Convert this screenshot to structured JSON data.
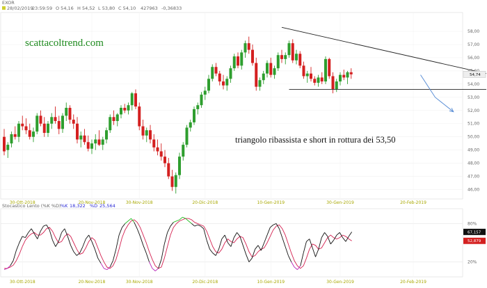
{
  "header": {
    "symbol": "EXOR",
    "date": "28/02/2019",
    "time": "23:59:59",
    "open": "O 54,16",
    "high": "H 54,52",
    "low": "L 53,80",
    "close": "C 54,10",
    "volume": "427963",
    "change": "-0,36833"
  },
  "watermark": "scattacoltrend.com",
  "annotation": "triangolo ribassista e short in rottura dei 53,50",
  "colors": {
    "up": "#2e9e2e",
    "down": "#d42020",
    "trendline": "#222222",
    "arrow": "#5b8fd6",
    "stoch_k": "#111111",
    "stoch_d": "#d42050",
    "stoch_k_high": "#22bb22",
    "stoch_k_low": "#b620b6"
  },
  "price_axis": {
    "ticks": [
      "58,00",
      "57,00",
      "56,00",
      "55,00",
      "54,00",
      "53,00",
      "52,00",
      "51,00",
      "50,00",
      "49,00",
      "48,00",
      "47,00",
      "46,00"
    ],
    "last_price": "54,74"
  },
  "date_labels": [
    "30-Ott-2018",
    "20-Nov-2018",
    "30-Nov-2018",
    "20-Dic-2018",
    "10-Gen-2019",
    "30-Gen-2019",
    "20-Feb-2019"
  ],
  "stoch_header": {
    "name": "Stocastico Lento (%K %D)",
    "k_label": "%K",
    "k_value": "18,322",
    "d_label": "%D",
    "d_value": "25,564"
  },
  "stoch_axis": {
    "ticks": [
      "80%",
      "20%"
    ],
    "k_last": "67,157",
    "d_last": "52,879"
  },
  "chart_data": [
    {
      "type": "candlestick",
      "title": "EXOR",
      "ylim": [
        45.5,
        58.9
      ],
      "candles": [
        {
          "o": 50.0,
          "h": 50.6,
          "l": 48.6,
          "c": 48.9
        },
        {
          "o": 49.0,
          "h": 49.6,
          "l": 48.4,
          "c": 49.4
        },
        {
          "o": 49.5,
          "h": 50.4,
          "l": 49.2,
          "c": 50.2
        },
        {
          "o": 50.2,
          "h": 50.8,
          "l": 49.8,
          "c": 50.0
        },
        {
          "o": 50.0,
          "h": 51.2,
          "l": 49.6,
          "c": 51.0
        },
        {
          "o": 51.0,
          "h": 51.6,
          "l": 50.5,
          "c": 50.8
        },
        {
          "o": 50.8,
          "h": 51.4,
          "l": 50.2,
          "c": 50.5
        },
        {
          "o": 50.5,
          "h": 51.0,
          "l": 49.8,
          "c": 50.0
        },
        {
          "o": 50.0,
          "h": 50.7,
          "l": 49.6,
          "c": 50.4
        },
        {
          "o": 50.4,
          "h": 51.8,
          "l": 50.2,
          "c": 51.6
        },
        {
          "o": 51.6,
          "h": 52.0,
          "l": 50.8,
          "c": 51.0
        },
        {
          "o": 51.0,
          "h": 51.5,
          "l": 50.0,
          "c": 50.3
        },
        {
          "o": 50.3,
          "h": 51.2,
          "l": 50.0,
          "c": 51.0
        },
        {
          "o": 51.0,
          "h": 51.8,
          "l": 50.6,
          "c": 51.5
        },
        {
          "o": 51.5,
          "h": 52.3,
          "l": 51.0,
          "c": 51.2
        },
        {
          "o": 51.2,
          "h": 51.6,
          "l": 50.2,
          "c": 50.6
        },
        {
          "o": 50.6,
          "h": 51.8,
          "l": 50.3,
          "c": 51.6
        },
        {
          "o": 51.6,
          "h": 52.6,
          "l": 51.2,
          "c": 52.2
        },
        {
          "o": 52.2,
          "h": 52.4,
          "l": 51.0,
          "c": 51.3
        },
        {
          "o": 51.3,
          "h": 51.7,
          "l": 50.6,
          "c": 51.0
        },
        {
          "o": 51.0,
          "h": 51.5,
          "l": 49.5,
          "c": 49.8
        },
        {
          "o": 49.8,
          "h": 50.4,
          "l": 49.2,
          "c": 50.1
        },
        {
          "o": 50.1,
          "h": 50.6,
          "l": 49.4,
          "c": 49.6
        },
        {
          "o": 49.6,
          "h": 50.1,
          "l": 48.9,
          "c": 49.1
        },
        {
          "o": 49.1,
          "h": 49.8,
          "l": 48.7,
          "c": 49.5
        },
        {
          "o": 49.5,
          "h": 50.2,
          "l": 49.0,
          "c": 49.8
        },
        {
          "o": 49.8,
          "h": 50.5,
          "l": 49.3,
          "c": 49.4
        },
        {
          "o": 49.4,
          "h": 50.0,
          "l": 49.0,
          "c": 49.8
        },
        {
          "o": 49.8,
          "h": 50.7,
          "l": 49.5,
          "c": 50.5
        },
        {
          "o": 50.5,
          "h": 51.7,
          "l": 50.3,
          "c": 51.5
        },
        {
          "o": 51.5,
          "h": 52.0,
          "l": 50.9,
          "c": 51.2
        },
        {
          "o": 51.2,
          "h": 51.8,
          "l": 50.8,
          "c": 51.7
        },
        {
          "o": 51.7,
          "h": 52.4,
          "l": 51.4,
          "c": 52.2
        },
        {
          "o": 52.2,
          "h": 52.5,
          "l": 51.8,
          "c": 52.0
        },
        {
          "o": 52.0,
          "h": 52.6,
          "l": 51.7,
          "c": 52.4
        },
        {
          "o": 52.4,
          "h": 53.4,
          "l": 52.0,
          "c": 53.3
        },
        {
          "o": 53.3,
          "h": 53.6,
          "l": 52.1,
          "c": 52.3
        },
        {
          "o": 52.3,
          "h": 52.6,
          "l": 50.5,
          "c": 50.8
        },
        {
          "o": 50.8,
          "h": 51.3,
          "l": 49.8,
          "c": 50.1
        },
        {
          "o": 50.1,
          "h": 50.7,
          "l": 49.6,
          "c": 50.5
        },
        {
          "o": 50.5,
          "h": 50.9,
          "l": 49.5,
          "c": 49.8
        },
        {
          "o": 49.8,
          "h": 50.2,
          "l": 48.9,
          "c": 49.2
        },
        {
          "o": 49.2,
          "h": 49.8,
          "l": 48.6,
          "c": 48.9
        },
        {
          "o": 48.9,
          "h": 49.5,
          "l": 48.2,
          "c": 48.5
        },
        {
          "o": 48.5,
          "h": 49.0,
          "l": 47.7,
          "c": 48.0
        },
        {
          "o": 48.0,
          "h": 48.4,
          "l": 46.8,
          "c": 47.0
        },
        {
          "o": 47.0,
          "h": 47.5,
          "l": 45.9,
          "c": 46.2
        },
        {
          "o": 46.2,
          "h": 47.3,
          "l": 45.7,
          "c": 47.1
        },
        {
          "o": 47.1,
          "h": 48.8,
          "l": 46.8,
          "c": 48.5
        },
        {
          "o": 48.5,
          "h": 49.6,
          "l": 48.2,
          "c": 49.4
        },
        {
          "o": 49.4,
          "h": 50.9,
          "l": 49.2,
          "c": 50.7
        },
        {
          "o": 50.7,
          "h": 51.3,
          "l": 50.4,
          "c": 51.1
        },
        {
          "o": 51.1,
          "h": 52.3,
          "l": 50.9,
          "c": 52.1
        },
        {
          "o": 52.1,
          "h": 52.6,
          "l": 51.7,
          "c": 52.4
        },
        {
          "o": 52.4,
          "h": 53.4,
          "l": 52.2,
          "c": 53.2
        },
        {
          "o": 53.2,
          "h": 53.8,
          "l": 52.8,
          "c": 53.5
        },
        {
          "o": 53.5,
          "h": 54.7,
          "l": 53.3,
          "c": 54.4
        },
        {
          "o": 54.4,
          "h": 55.5,
          "l": 54.2,
          "c": 55.3
        },
        {
          "o": 55.3,
          "h": 55.6,
          "l": 54.6,
          "c": 54.8
        },
        {
          "o": 54.8,
          "h": 55.0,
          "l": 53.9,
          "c": 54.2
        },
        {
          "o": 54.2,
          "h": 54.7,
          "l": 53.6,
          "c": 53.9
        },
        {
          "o": 53.9,
          "h": 54.6,
          "l": 53.5,
          "c": 54.4
        },
        {
          "o": 54.4,
          "h": 55.4,
          "l": 54.1,
          "c": 55.2
        },
        {
          "o": 55.2,
          "h": 56.3,
          "l": 55.0,
          "c": 56.1
        },
        {
          "o": 56.1,
          "h": 56.4,
          "l": 55.2,
          "c": 55.4
        },
        {
          "o": 55.4,
          "h": 56.6,
          "l": 55.1,
          "c": 56.4
        },
        {
          "o": 56.4,
          "h": 57.3,
          "l": 56.0,
          "c": 57.1
        },
        {
          "o": 57.1,
          "h": 57.6,
          "l": 56.3,
          "c": 56.6
        },
        {
          "o": 56.6,
          "h": 57.0,
          "l": 55.4,
          "c": 55.6
        },
        {
          "o": 55.6,
          "h": 56.0,
          "l": 53.5,
          "c": 53.8
        },
        {
          "o": 53.8,
          "h": 54.5,
          "l": 53.5,
          "c": 54.3
        },
        {
          "o": 54.3,
          "h": 55.0,
          "l": 54.0,
          "c": 54.8
        },
        {
          "o": 54.8,
          "h": 55.8,
          "l": 54.5,
          "c": 55.6
        },
        {
          "o": 55.6,
          "h": 56.0,
          "l": 54.5,
          "c": 54.7
        },
        {
          "o": 54.7,
          "h": 55.4,
          "l": 54.4,
          "c": 55.2
        },
        {
          "o": 55.2,
          "h": 56.4,
          "l": 55.0,
          "c": 56.2
        },
        {
          "o": 56.2,
          "h": 56.6,
          "l": 55.6,
          "c": 55.9
        },
        {
          "o": 55.9,
          "h": 56.4,
          "l": 55.5,
          "c": 56.2
        },
        {
          "o": 56.2,
          "h": 57.3,
          "l": 56.0,
          "c": 57.1
        },
        {
          "o": 57.1,
          "h": 57.4,
          "l": 55.6,
          "c": 55.8
        },
        {
          "o": 55.8,
          "h": 56.6,
          "l": 55.5,
          "c": 56.3
        },
        {
          "o": 56.3,
          "h": 56.5,
          "l": 55.2,
          "c": 55.4
        },
        {
          "o": 55.4,
          "h": 55.7,
          "l": 54.4,
          "c": 54.6
        },
        {
          "o": 54.6,
          "h": 55.0,
          "l": 54.1,
          "c": 54.8
        },
        {
          "o": 54.8,
          "h": 55.3,
          "l": 54.2,
          "c": 54.4
        },
        {
          "o": 54.4,
          "h": 54.6,
          "l": 53.9,
          "c": 54.1
        },
        {
          "o": 54.1,
          "h": 54.7,
          "l": 53.8,
          "c": 54.5
        },
        {
          "o": 54.5,
          "h": 54.9,
          "l": 54.0,
          "c": 54.2
        },
        {
          "o": 54.2,
          "h": 56.1,
          "l": 54.0,
          "c": 55.9
        },
        {
          "o": 55.9,
          "h": 56.0,
          "l": 54.4,
          "c": 54.6
        },
        {
          "o": 54.6,
          "h": 54.9,
          "l": 53.3,
          "c": 53.6
        },
        {
          "o": 53.6,
          "h": 54.4,
          "l": 53.4,
          "c": 54.2
        },
        {
          "o": 54.2,
          "h": 54.9,
          "l": 53.9,
          "c": 54.7
        },
        {
          "o": 54.7,
          "h": 55.1,
          "l": 54.3,
          "c": 54.5
        },
        {
          "o": 54.5,
          "h": 55.0,
          "l": 54.0,
          "c": 54.9
        },
        {
          "o": 54.9,
          "h": 55.2,
          "l": 54.4,
          "c": 54.74
        }
      ],
      "trendlines": [
        {
          "label": "resistance",
          "from": {
            "i": 76,
            "y": 58.3
          },
          "to": {
            "i": 132,
            "y": 54.8
          }
        },
        {
          "label": "support",
          "from": {
            "i": 78,
            "y": 53.6
          },
          "to": {
            "i": 132,
            "y": 53.6
          }
        }
      ],
      "projection_arrow": [
        {
          "i": 114,
          "y": 54.7
        },
        {
          "i": 118,
          "y": 53.0
        },
        {
          "i": 123,
          "y": 51.9
        }
      ]
    },
    {
      "type": "line",
      "title": "Stocastico Lento (%K %D)",
      "ylim": [
        0,
        100
      ],
      "series": [
        {
          "name": "%K",
          "values": [
            8,
            10,
            14,
            22,
            38,
            50,
            60,
            58,
            66,
            72,
            64,
            56,
            68,
            76,
            78,
            70,
            54,
            44,
            52,
            66,
            72,
            60,
            46,
            36,
            30,
            34,
            44,
            56,
            62,
            52,
            40,
            26,
            18,
            10,
            8,
            12,
            22,
            40,
            62,
            74,
            80,
            84,
            88,
            82,
            72,
            60,
            46,
            34,
            20,
            10,
            6,
            10,
            24,
            48,
            66,
            76,
            82,
            84,
            86,
            90,
            88,
            84,
            80,
            76,
            78,
            76,
            72,
            54,
            40,
            34,
            30,
            40,
            56,
            62,
            50,
            44,
            58,
            66,
            60,
            46,
            32,
            20,
            26,
            40,
            46,
            38,
            50,
            62,
            74,
            78,
            80,
            72,
            58,
            44,
            30,
            20,
            12,
            8,
            14,
            34,
            52,
            56,
            42,
            28,
            40,
            58,
            66,
            60,
            48,
            54,
            62,
            66,
            58,
            52,
            60,
            67
          ]
        },
        {
          "name": "%D",
          "values": [
            10,
            10,
            12,
            15,
            22,
            32,
            44,
            54,
            60,
            64,
            66,
            62,
            62,
            66,
            72,
            74,
            68,
            58,
            50,
            52,
            60,
            64,
            60,
            50,
            40,
            32,
            34,
            42,
            52,
            58,
            54,
            42,
            30,
            20,
            12,
            10,
            14,
            24,
            40,
            58,
            70,
            78,
            84,
            86,
            82,
            74,
            62,
            50,
            36,
            24,
            14,
            10,
            12,
            26,
            44,
            62,
            74,
            80,
            84,
            86,
            88,
            88,
            86,
            82,
            80,
            78,
            76,
            68,
            56,
            44,
            36,
            34,
            40,
            50,
            56,
            52,
            50,
            56,
            60,
            58,
            48,
            36,
            28,
            30,
            36,
            40,
            42,
            50,
            60,
            70,
            76,
            78,
            72,
            62,
            48,
            34,
            22,
            14,
            10,
            14,
            26,
            40,
            48,
            46,
            40,
            42,
            50,
            58,
            62,
            58,
            56,
            58,
            62,
            60,
            56,
            53
          ]
        }
      ],
      "bands": [
        80,
        20
      ]
    }
  ]
}
